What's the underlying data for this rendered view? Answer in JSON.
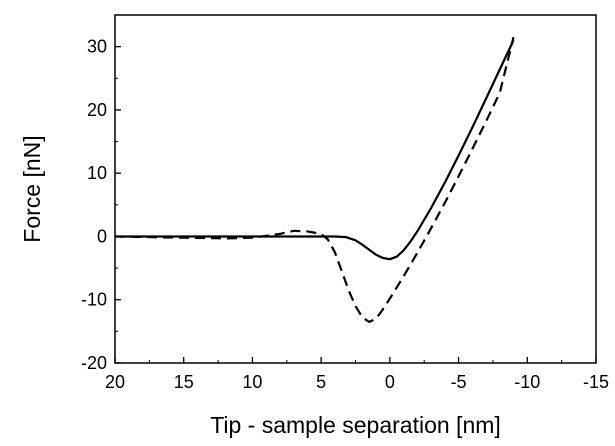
{
  "chart_data": {
    "type": "line",
    "title": "",
    "xlabel": "Tip - sample separation [nm]",
    "ylabel": "Force [nN]",
    "xlim": [
      20,
      -15
    ],
    "ylim": [
      -20,
      35
    ],
    "x_reversed": true,
    "grid": false,
    "legend": "none",
    "xticks": [
      20,
      15,
      10,
      5,
      0,
      -5,
      -10,
      -15
    ],
    "yticks": [
      -20,
      -10,
      0,
      10,
      20,
      30
    ],
    "series": [
      {
        "style": "solid",
        "color": "#000000",
        "x": [
          20,
          15,
          10,
          6,
          4,
          3.2,
          2.5,
          2,
          1.5,
          1,
          0.5,
          0,
          -0.5,
          -1,
          -1.5,
          -2,
          -3,
          -4,
          -5,
          -6,
          -7,
          -8,
          -9
        ],
        "y": [
          0,
          0,
          0,
          0,
          0,
          -0.1,
          -0.6,
          -1.3,
          -2.1,
          -2.9,
          -3.4,
          -3.6,
          -3.2,
          -2.2,
          -0.8,
          0.8,
          4.5,
          8.5,
          12.8,
          17.2,
          21.8,
          26.4,
          31.0
        ]
      },
      {
        "style": "dashed",
        "color": "#000000",
        "x": [
          20,
          15,
          12,
          10,
          8,
          7,
          6,
          5,
          4.5,
          4,
          3.5,
          3,
          2.5,
          2,
          1.5,
          1,
          0.5,
          0,
          -1,
          -2,
          -3,
          -4,
          -5,
          -6,
          -7,
          -8,
          -9
        ],
        "y": [
          0,
          -0.2,
          -0.3,
          -0.2,
          0.4,
          0.9,
          0.8,
          0.4,
          -0.5,
          -2.5,
          -5.5,
          -8.5,
          -11,
          -12.8,
          -13.5,
          -13.0,
          -11.5,
          -9.8,
          -6.3,
          -2.6,
          1.3,
          5.3,
          9.5,
          13.8,
          18.2,
          22.7,
          31.5
        ]
      }
    ]
  }
}
